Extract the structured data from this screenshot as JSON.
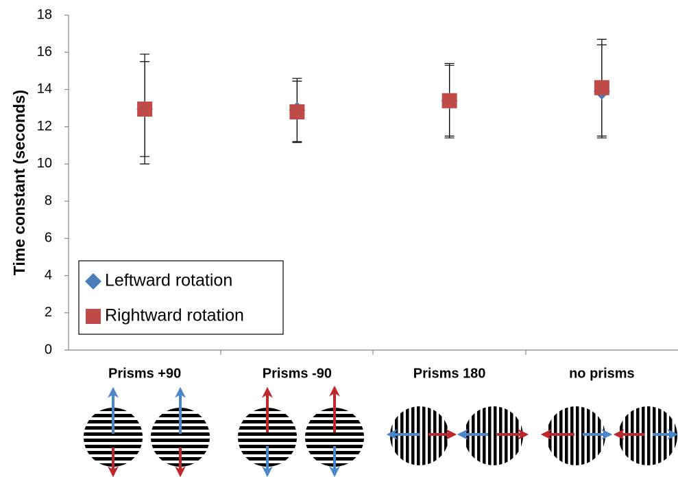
{
  "chart_data": {
    "type": "scatter",
    "y_label": "Time constant (seconds)",
    "categories": [
      "Prisms +90",
      "Prisms -90",
      "Prisms 180",
      "no prisms"
    ],
    "series": [
      {
        "name": "Leftward rotation",
        "color": "#4a7ebb",
        "marker": "diamond",
        "values": [
          12.95,
          12.9,
          13.4,
          13.9
        ],
        "errors": [
          2.95,
          1.7,
          2.0,
          2.5
        ]
      },
      {
        "name": "Rightward rotation",
        "color": "#be4b48",
        "marker": "square",
        "values": [
          12.95,
          12.8,
          13.4,
          14.1
        ],
        "errors": [
          2.55,
          1.65,
          1.9,
          2.6
        ]
      }
    ],
    "ylim": [
      0,
      18
    ],
    "yticks": [
      0,
      2,
      4,
      6,
      8,
      10,
      12,
      14,
      16,
      18
    ]
  }
}
